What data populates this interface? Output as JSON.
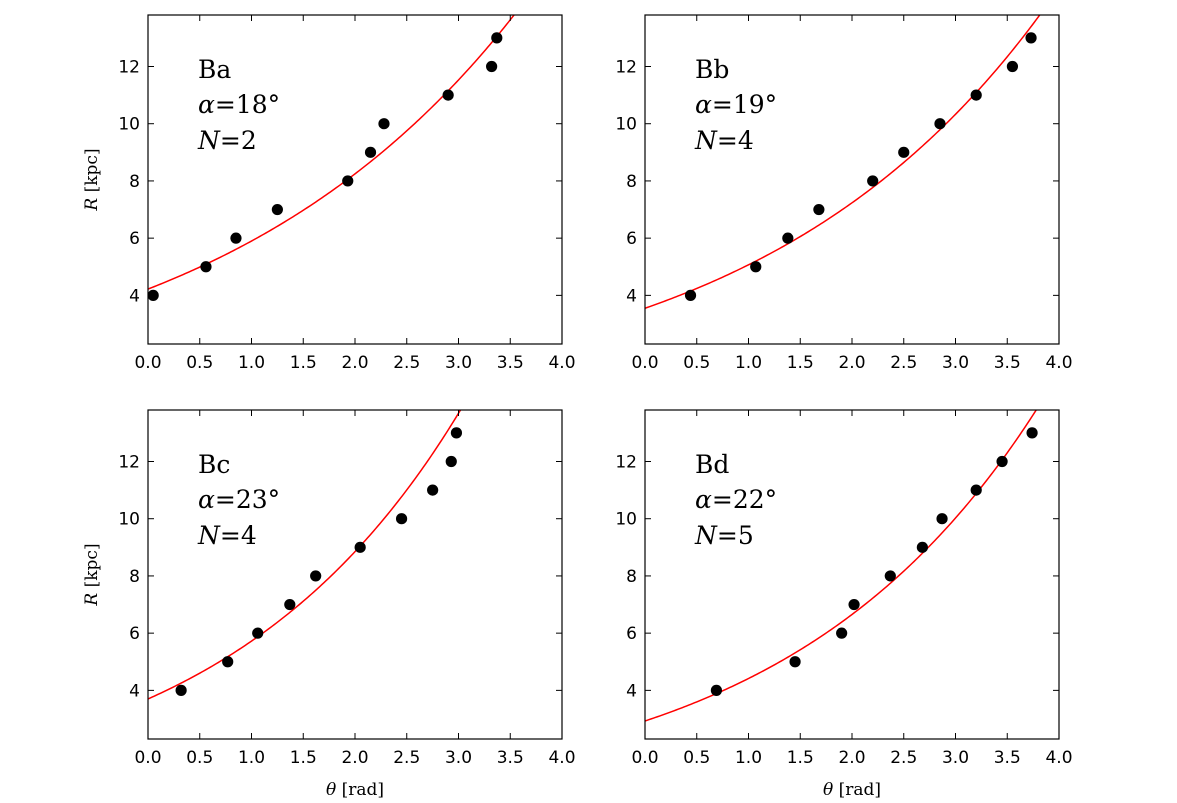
{
  "chart_data": [
    {
      "type": "scatter",
      "panel": "Ba",
      "annotations": {
        "name": "Ba",
        "alpha_symbol": "α",
        "alpha_value": "18°",
        "n_symbol": "N",
        "n_value": "2"
      },
      "xlabel": {
        "symbol": "θ",
        "unit": "[rad]",
        "show": false
      },
      "ylabel": {
        "symbol": "R",
        "unit": "[kpc]",
        "show": true
      },
      "xlim": [
        0,
        4
      ],
      "ylim": [
        2.3,
        13.8
      ],
      "xticks": [
        "0.0",
        "0.5",
        "1.0",
        "1.5",
        "2.0",
        "2.5",
        "3.0",
        "3.5",
        "4.0"
      ],
      "yticks": [
        "4",
        "6",
        "8",
        "10",
        "12"
      ],
      "points": {
        "x": [
          0.05,
          0.56,
          0.85,
          1.25,
          1.93,
          2.15,
          2.28,
          2.9,
          3.32,
          3.37
        ],
        "y": [
          4,
          5,
          6,
          7,
          8,
          9,
          10,
          11,
          12,
          13
        ]
      },
      "fit": {
        "type": "exponential",
        "color": "#ff0000",
        "a": 4.22,
        "b": 0.335
      }
    },
    {
      "type": "scatter",
      "panel": "Bb",
      "annotations": {
        "name": "Bb",
        "alpha_symbol": "α",
        "alpha_value": "19°",
        "n_symbol": "N",
        "n_value": "4"
      },
      "xlabel": {
        "symbol": "θ",
        "unit": "[rad]",
        "show": false
      },
      "ylabel": {
        "symbol": "R",
        "unit": "[kpc]",
        "show": false
      },
      "xlim": [
        0,
        4
      ],
      "ylim": [
        2.3,
        13.8
      ],
      "xticks": [
        "0.0",
        "0.5",
        "1.0",
        "1.5",
        "2.0",
        "2.5",
        "3.0",
        "3.5",
        "4.0"
      ],
      "yticks": [
        "4",
        "6",
        "8",
        "10",
        "12"
      ],
      "points": {
        "x": [
          0.44,
          1.07,
          1.38,
          1.68,
          2.2,
          2.5,
          2.85,
          3.2,
          3.55,
          3.73
        ],
        "y": [
          4,
          5,
          6,
          7,
          8,
          9,
          10,
          11,
          12,
          13
        ]
      },
      "fit": {
        "type": "exponential",
        "color": "#ff0000",
        "a": 3.55,
        "b": 0.356
      }
    },
    {
      "type": "scatter",
      "panel": "Bc",
      "annotations": {
        "name": "Bc",
        "alpha_symbol": "α",
        "alpha_value": "23°",
        "n_symbol": "N",
        "n_value": "4"
      },
      "xlabel": {
        "symbol": "θ",
        "unit": "[rad]",
        "show": true
      },
      "ylabel": {
        "symbol": "R",
        "unit": "[kpc]",
        "show": true
      },
      "xlim": [
        0,
        4
      ],
      "ylim": [
        2.3,
        13.8
      ],
      "xticks": [
        "0.0",
        "0.5",
        "1.0",
        "1.5",
        "2.0",
        "2.5",
        "3.0",
        "3.5",
        "4.0"
      ],
      "yticks": [
        "4",
        "6",
        "8",
        "10",
        "12"
      ],
      "points": {
        "x": [
          0.32,
          0.77,
          1.06,
          1.37,
          1.62,
          2.05,
          2.45,
          2.75,
          2.93,
          2.98
        ],
        "y": [
          4,
          5,
          6,
          7,
          8,
          9,
          10,
          11,
          12,
          13
        ]
      },
      "fit": {
        "type": "exponential",
        "color": "#ff0000",
        "a": 3.7,
        "b": 0.436
      }
    },
    {
      "type": "scatter",
      "panel": "Bd",
      "annotations": {
        "name": "Bd",
        "alpha_symbol": "α",
        "alpha_value": "22°",
        "n_symbol": "N",
        "n_value": "5"
      },
      "xlabel": {
        "symbol": "θ",
        "unit": "[rad]",
        "show": true
      },
      "ylabel": {
        "symbol": "R",
        "unit": "[kpc]",
        "show": false
      },
      "xlim": [
        0,
        4
      ],
      "ylim": [
        2.3,
        13.8
      ],
      "xticks": [
        "0.0",
        "0.5",
        "1.0",
        "1.5",
        "2.0",
        "2.5",
        "3.0",
        "3.5",
        "4.0"
      ],
      "yticks": [
        "4",
        "6",
        "8",
        "10",
        "12"
      ],
      "points": {
        "x": [
          0.69,
          1.45,
          1.9,
          2.02,
          2.37,
          2.68,
          2.87,
          3.2,
          3.45,
          3.74
        ],
        "y": [
          4,
          5,
          6,
          7,
          8,
          9,
          10,
          11,
          12,
          13
        ]
      },
      "fit": {
        "type": "exponential",
        "color": "#ff0000",
        "a": 2.93,
        "b": 0.41
      }
    }
  ]
}
